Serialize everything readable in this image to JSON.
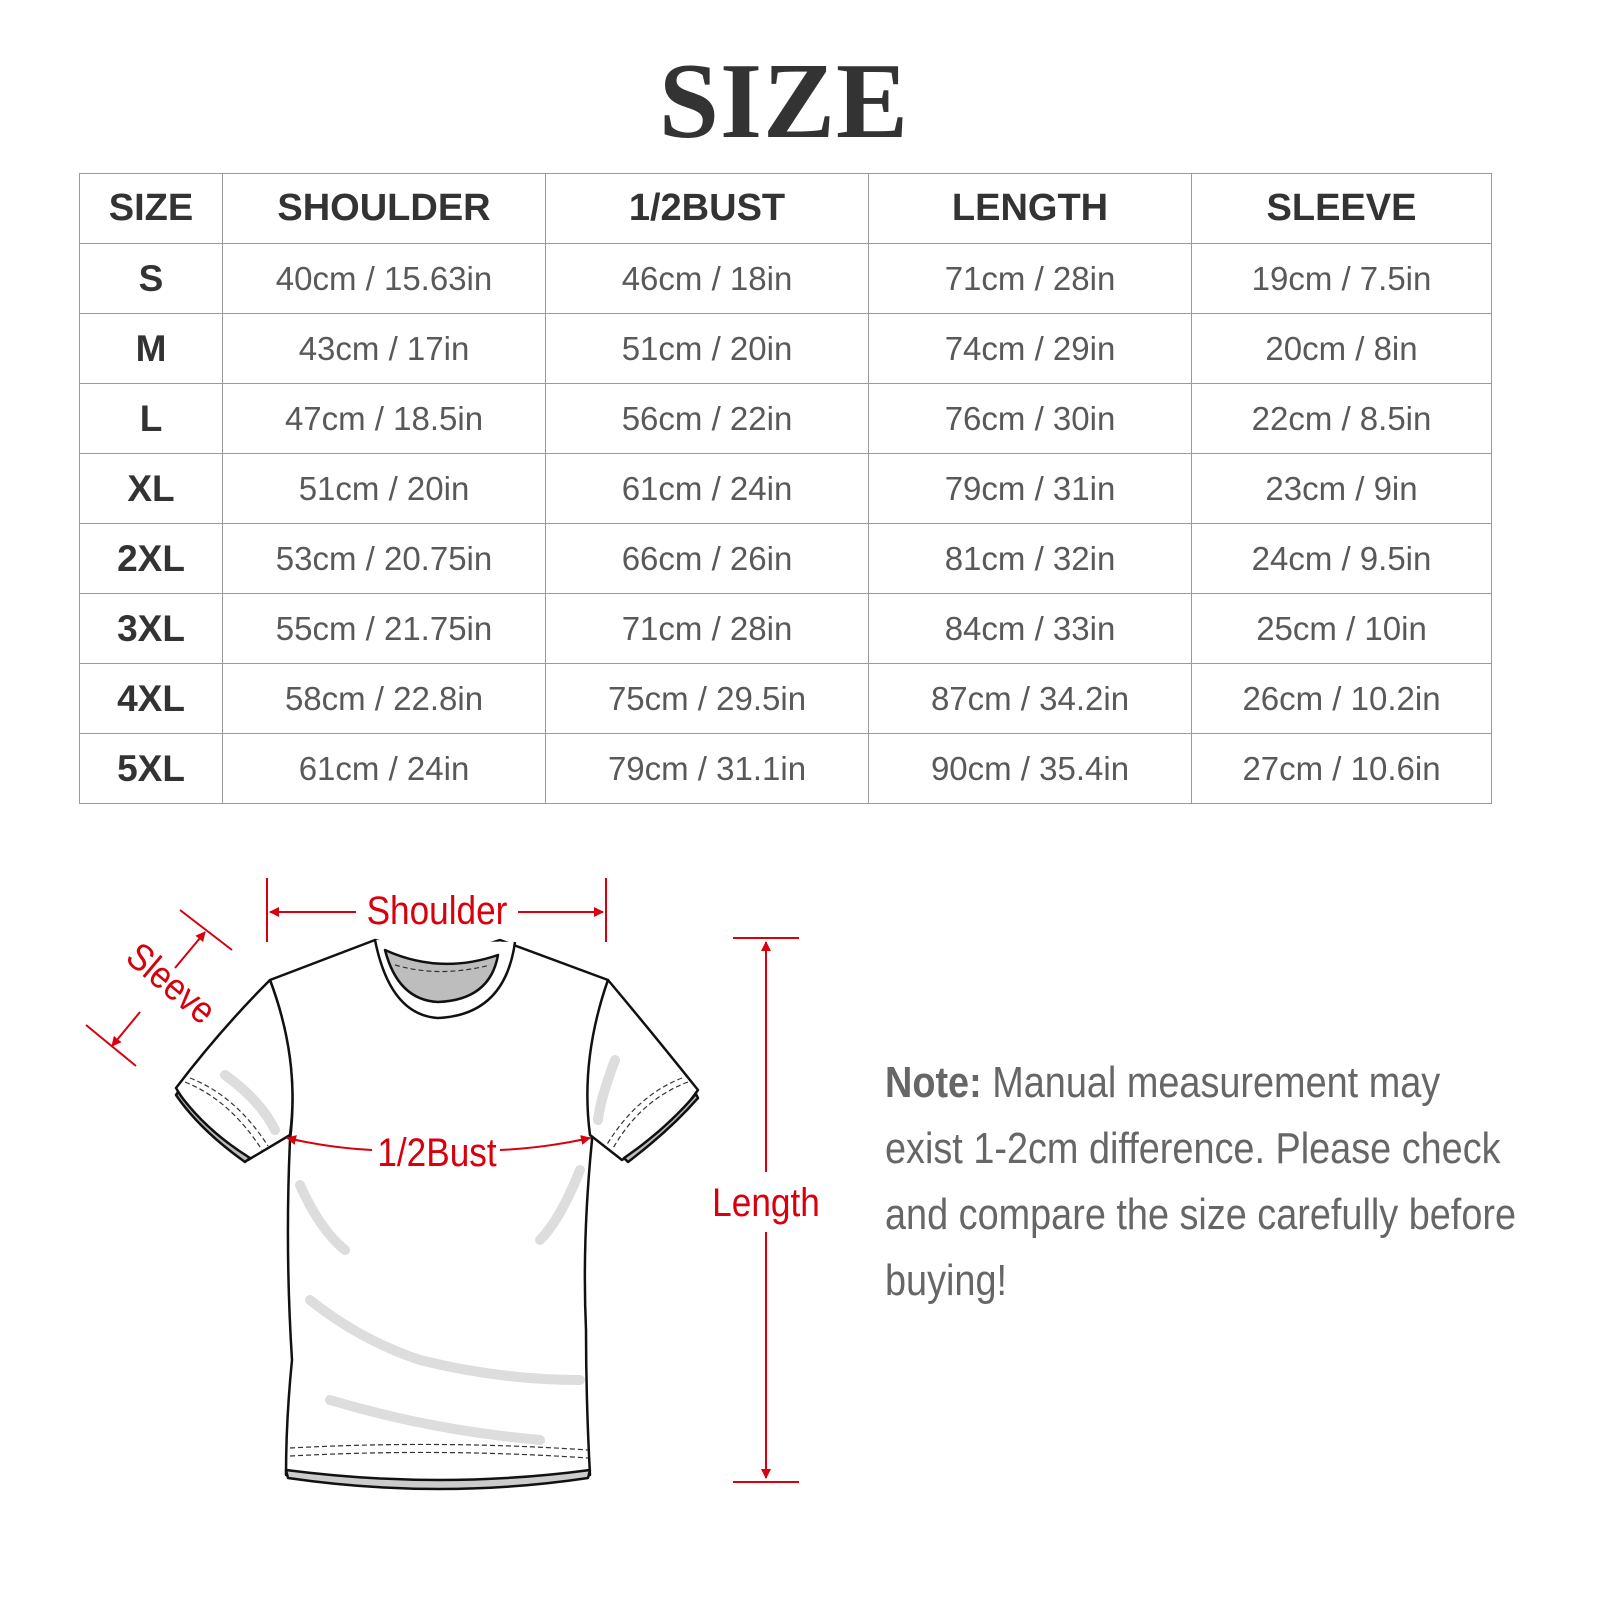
{
  "title": "SIZE",
  "table": {
    "headers": [
      "SIZE",
      "SHOULDER",
      "1/2BUST",
      "LENGTH",
      "SLEEVE"
    ],
    "rows": [
      [
        "S",
        "40cm / 15.63in",
        "46cm / 18in",
        "71cm / 28in",
        "19cm / 7.5in"
      ],
      [
        "M",
        "43cm / 17in",
        "51cm / 20in",
        "74cm / 29in",
        "20cm / 8in"
      ],
      [
        "L",
        "47cm / 18.5in",
        "56cm / 22in",
        "76cm / 30in",
        "22cm / 8.5in"
      ],
      [
        "XL",
        "51cm / 20in",
        "61cm / 24in",
        "79cm / 31in",
        "23cm / 9in"
      ],
      [
        "2XL",
        "53cm / 20.75in",
        "66cm / 26in",
        "81cm / 32in",
        "24cm / 9.5in"
      ],
      [
        "3XL",
        "55cm / 21.75in",
        "71cm / 28in",
        "84cm / 33in",
        "25cm / 10in"
      ],
      [
        "4XL",
        "58cm / 22.8in",
        "75cm / 29.5in",
        "87cm / 34.2in",
        "26cm / 10.2in"
      ],
      [
        "5XL",
        "61cm / 24in",
        "79cm / 31.1in",
        "90cm / 35.4in",
        "27cm / 10.6in"
      ]
    ]
  },
  "diagram": {
    "shoulder": "Shoulder",
    "sleeve": "Sleeve",
    "bust": "1/2Bust",
    "length": "Length",
    "accent_color": "#d9000d"
  },
  "note": {
    "label": "Note:",
    "text": "Manual measurement may exist 1-2cm difference. Please check and compare the size carefully before buying!"
  }
}
